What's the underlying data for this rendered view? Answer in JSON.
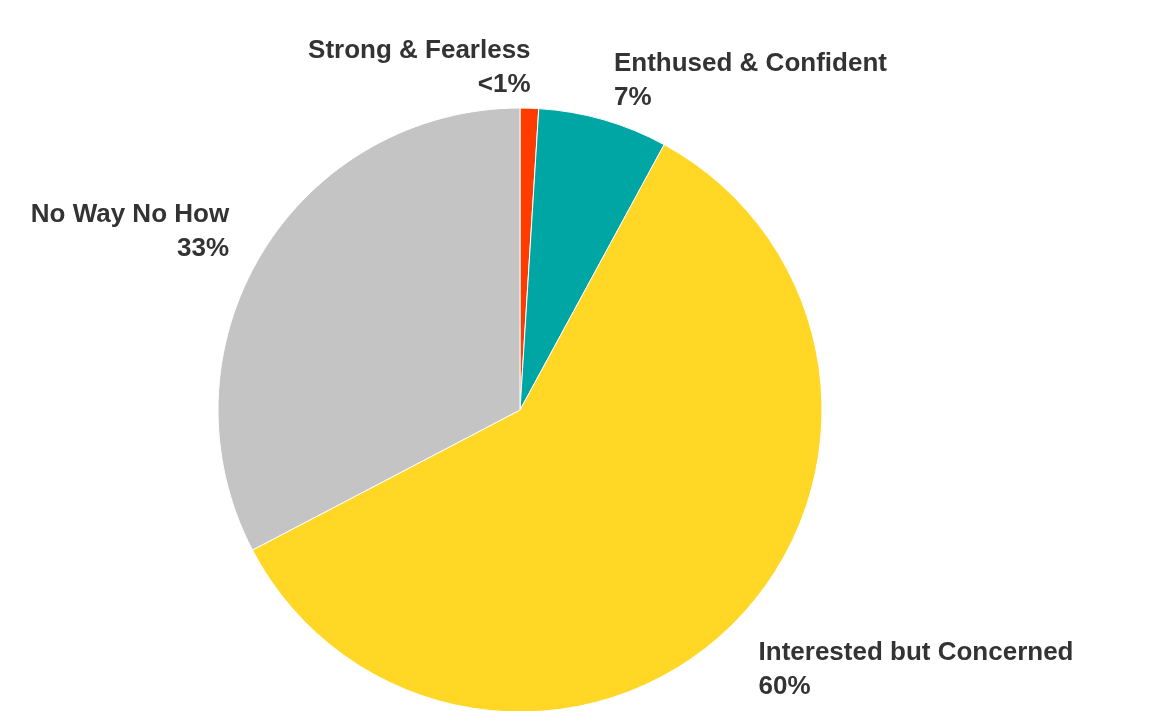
{
  "chart_data": {
    "type": "pie",
    "categories": [
      "Strong & Fearless",
      "Enthused & Confident",
      "Interested but Concerned",
      "No Way No How"
    ],
    "values": [
      1,
      7,
      60,
      33
    ],
    "value_labels": [
      "<1%",
      "7%",
      "60%",
      "33%"
    ],
    "colors": [
      "#ff3c00",
      "#00a6a4",
      "#ffd724",
      "#c4c4c4"
    ]
  }
}
